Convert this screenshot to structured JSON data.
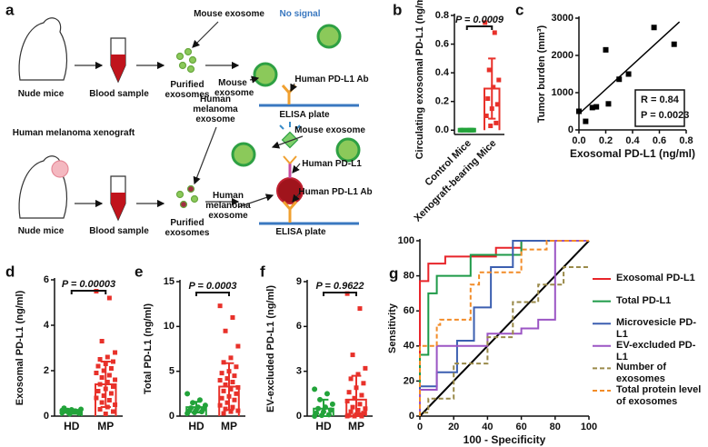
{
  "diagram": {
    "panel": "a",
    "top": {
      "mouse": "Nude mice",
      "blood": "Blood sample",
      "purified": "Purified exosomes",
      "mouse_exosome_free": "Mouse exosome",
      "signal": "No signal",
      "antibody": "Human PD-L1 Ab",
      "mouse_exosome": "Mouse exosome",
      "plate": "ELISA plate"
    },
    "bottom": {
      "xenograft": "Human melanoma xenograft",
      "mouse": "Nude mice",
      "blood": "Blood sample",
      "purified": "Purified exosomes",
      "melanoma_exosome_free": "Human melanoma exosome",
      "mouse_exosome": "Mouse exosome",
      "pdl1": "Human PD-L1",
      "antibody": "Human PD-L1 Ab",
      "melanoma_exosome": "Human melanoma exosome",
      "plate": "ELISA plate"
    }
  },
  "chart_data": [
    {
      "type": "bar",
      "panel": "b",
      "ylabel": "Circulating exosomal PD-L1 (ng/ml)",
      "annotation": "P = 0.0009",
      "categories": [
        "Control Mice",
        "Xenograft-bearing Mice"
      ],
      "values": [
        0,
        0.29
      ],
      "errors": [
        0,
        0.21
      ],
      "colors": [
        "#22a33a",
        "#e8312a"
      ],
      "markers": [
        "square",
        "square"
      ],
      "points": [
        [
          0,
          0,
          0,
          0,
          0,
          0,
          0,
          0,
          0,
          0
        ],
        [
          0.75,
          0.68,
          0.42,
          0.35,
          0.3,
          0.22,
          0.18,
          0.15,
          0.1,
          0.05,
          0.03
        ]
      ],
      "ylim": [
        -0.03,
        0.8
      ],
      "yticks": [
        {
          "value": 0,
          "label": "0.0"
        },
        0.2,
        0.4,
        0.6,
        0.8
      ]
    },
    {
      "type": "scatter",
      "panel": "c",
      "xlabel": "Exosomal PD-L1 (ng/ml)",
      "ylabel": "Tumor burden (mm³)",
      "x": [
        0.0,
        0.05,
        0.1,
        0.13,
        0.2,
        0.22,
        0.3,
        0.37,
        0.56,
        0.71
      ],
      "values": [
        500,
        230,
        600,
        620,
        2150,
        700,
        1360,
        1500,
        2750,
        2300
      ],
      "color": "#000000",
      "trendline": {
        "x": [
          0,
          0.75
        ],
        "values": [
          430,
          2900
        ]
      },
      "annotations": [
        "R = 0.84",
        "P = 0.0023"
      ],
      "xlim": [
        0,
        0.8
      ],
      "ylim": [
        0,
        3000
      ],
      "xticks": [
        {
          "value": 0,
          "label": "0.0"
        },
        0.2,
        0.4,
        0.6,
        0.8
      ],
      "yticks": [
        0,
        1000,
        2000,
        3000
      ]
    },
    {
      "type": "bar",
      "panel": "d",
      "ylabel": "Exosomal PD-L1 (ng/ml)",
      "annotation": "P = 0.00003",
      "categories": [
        "HD",
        "MP"
      ],
      "values": [
        0.2,
        1.4
      ],
      "errors": [
        0.1,
        1.0
      ],
      "colors": [
        "#22a33a",
        "#e8312a"
      ],
      "markers": [
        "circle",
        "square"
      ],
      "points": [
        [
          0.15,
          0.2,
          0.25,
          0.3,
          0.18,
          0.22,
          0.12,
          0.28,
          0.35,
          0.2,
          0.1,
          0.25
        ],
        [
          5.5,
          5.2,
          3.3,
          2.8,
          2.6,
          2.5,
          2.4,
          2.3,
          2.2,
          2.1,
          2.0,
          1.9,
          1.8,
          1.7,
          1.6,
          1.5,
          1.4,
          1.3,
          1.2,
          1.1,
          1.0,
          0.9,
          0.8,
          0.7,
          0.6,
          0.5,
          0.4,
          0.3,
          0.2,
          0.1
        ]
      ],
      "ylim": [
        0,
        6
      ],
      "yticks": [
        0,
        2,
        4,
        6
      ]
    },
    {
      "type": "bar",
      "panel": "e",
      "ylabel": "Total PD-L1 (ng/ml)",
      "annotation": "P = 0.0003",
      "categories": [
        "HD",
        "MP"
      ],
      "values": [
        1.0,
        3.3
      ],
      "errors": [
        0.6,
        2.6
      ],
      "colors": [
        "#22a33a",
        "#e8312a"
      ],
      "markers": [
        "circle",
        "square"
      ],
      "points": [
        [
          2.5,
          1.8,
          1.5,
          1.2,
          1.0,
          0.9,
          0.8,
          0.7,
          0.6,
          0.5,
          0.4,
          0.3
        ],
        [
          12.3,
          11,
          9.5,
          7.8,
          6.5,
          6,
          5.5,
          5,
          4.8,
          4.5,
          4.2,
          4,
          3.8,
          3.5,
          3.2,
          3,
          2.8,
          2.5,
          2.2,
          2,
          1.8,
          1.5,
          1.2,
          1,
          0.8,
          0.6,
          0.5,
          0.3
        ]
      ],
      "ylim": [
        0,
        15
      ],
      "yticks": [
        0,
        5,
        10,
        15
      ]
    },
    {
      "type": "bar",
      "panel": "f",
      "ylabel": "EV-excluded PD-L1 (ng/ml)",
      "annotation": "P = 0.9622",
      "categories": [
        "HD",
        "MP"
      ],
      "values": [
        0.5,
        1.1
      ],
      "errors": [
        0.6,
        1.6
      ],
      "colors": [
        "#22a33a",
        "#e8312a"
      ],
      "markers": [
        "circle",
        "square"
      ],
      "points": [
        [
          1.8,
          1.5,
          1.1,
          0.8,
          0.6,
          0.5,
          0.4,
          0.3,
          0.2,
          0.1,
          0.05,
          0
        ],
        [
          8.2,
          7.2,
          4.1,
          3.2,
          2.8,
          2.5,
          2.2,
          1.9,
          1.6,
          1.4,
          1.2,
          1,
          0.8,
          0.6,
          0.5,
          0.4,
          0.3,
          0.2,
          0.1,
          0.05,
          0,
          0,
          0,
          0.1
        ]
      ],
      "ylim": [
        0,
        9
      ],
      "yticks": [
        0,
        3,
        6,
        9
      ]
    },
    {
      "type": "line",
      "panel": "g",
      "xlabel": "100 - Specificity",
      "ylabel": "Sensitivity",
      "xlim": [
        0,
        100
      ],
      "ylim": [
        0,
        100
      ],
      "xticks": [
        0,
        20,
        40,
        60,
        80,
        100
      ],
      "yticks": [
        0,
        20,
        40,
        60,
        80,
        100
      ],
      "reference": {
        "x": [
          0,
          100
        ],
        "values": [
          0,
          100
        ],
        "color": "#000000"
      },
      "series": [
        {
          "name": "Exosomal PD-L1",
          "color": "#e8252a",
          "dash": false,
          "x": [
            0,
            0,
            5,
            5,
            15,
            15,
            45,
            45,
            60,
            60,
            100
          ],
          "values": [
            0,
            77,
            77,
            87,
            87,
            91,
            91,
            96,
            96,
            100,
            100
          ]
        },
        {
          "name": "Total PD-L1",
          "color": "#1e9a48",
          "dash": false,
          "x": [
            0,
            0,
            5,
            5,
            10,
            10,
            30,
            30,
            60,
            60,
            100
          ],
          "values": [
            0,
            35,
            35,
            70,
            70,
            80,
            80,
            92,
            92,
            100,
            100
          ]
        },
        {
          "name": "Microvesicle PD-L1",
          "color": "#3c5fb0",
          "dash": false,
          "x": [
            0,
            0,
            10,
            10,
            22,
            22,
            32,
            32,
            42,
            42,
            55,
            55,
            100
          ],
          "values": [
            0,
            17,
            17,
            25,
            25,
            43,
            43,
            62,
            62,
            85,
            85,
            100,
            100
          ]
        },
        {
          "name": "EV-excluded PD-L1",
          "color": "#9b55c4",
          "dash": false,
          "x": [
            0,
            0,
            10,
            10,
            40,
            40,
            60,
            60,
            70,
            70,
            80,
            80,
            100
          ],
          "values": [
            0,
            15,
            15,
            40,
            40,
            47,
            47,
            50,
            50,
            55,
            55,
            100,
            100
          ]
        },
        {
          "name": "Number of exosomes",
          "color": "#9a8a4a",
          "dash": true,
          "x": [
            0,
            0,
            5,
            5,
            20,
            20,
            40,
            40,
            55,
            55,
            70,
            70,
            85,
            85,
            100
          ],
          "values": [
            0,
            2,
            2,
            10,
            10,
            30,
            30,
            45,
            45,
            65,
            65,
            75,
            75,
            85,
            85
          ]
        },
        {
          "name": "Total protein level of exosomes",
          "color": "#f28c28",
          "dash": true,
          "x": [
            0,
            0,
            10,
            10,
            12,
            12,
            30,
            30,
            35,
            35,
            60,
            60,
            75,
            75,
            100
          ],
          "values": [
            0,
            40,
            40,
            52,
            52,
            55,
            55,
            75,
            75,
            82,
            82,
            95,
            95,
            100,
            100
          ]
        }
      ]
    }
  ]
}
